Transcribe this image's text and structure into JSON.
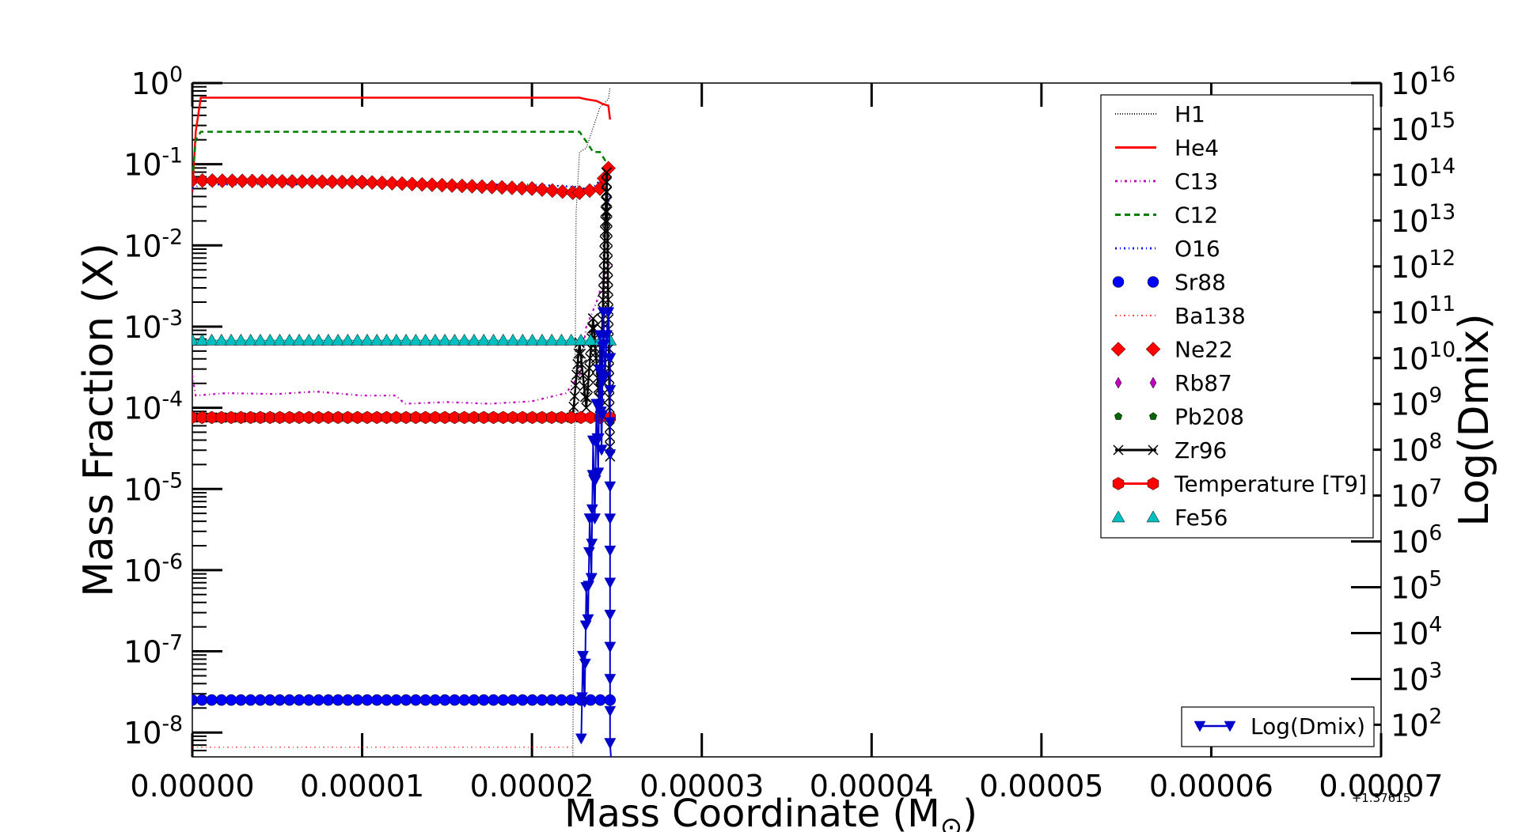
{
  "chart_data": {
    "type": "line",
    "xlabel": "Mass Coordinate (M",
    "xlabel_symbol": "⊙",
    "xlabel_close": ")",
    "ylabel": "Mass Fraction (X)",
    "y2label": "Log(Dmix)",
    "x_offset_label": "+1.37615",
    "xlim": [
      0.0,
      7e-05
    ],
    "ylim_log10": [
      -8.3,
      0.0
    ],
    "y2lim_log10": [
      1.3,
      16.0
    ],
    "xticks": [
      {
        "value": 0.0,
        "label": "0.00000"
      },
      {
        "value": 1e-05,
        "label": "0.00001"
      },
      {
        "value": 2e-05,
        "label": "0.00002"
      },
      {
        "value": 3e-05,
        "label": "0.00003"
      },
      {
        "value": 4e-05,
        "label": "0.00004"
      },
      {
        "value": 5e-05,
        "label": "0.00005"
      },
      {
        "value": 6e-05,
        "label": "0.00006"
      },
      {
        "value": 7e-05,
        "label": "0.00007"
      }
    ],
    "yticks": [
      {
        "exp": 0,
        "base": "10",
        "sup": "0"
      },
      {
        "exp": -1,
        "base": "10",
        "sup": "-1"
      },
      {
        "exp": -2,
        "base": "10",
        "sup": "-2"
      },
      {
        "exp": -3,
        "base": "10",
        "sup": "-3"
      },
      {
        "exp": -4,
        "base": "10",
        "sup": "-4"
      },
      {
        "exp": -5,
        "base": "10",
        "sup": "-5"
      },
      {
        "exp": -6,
        "base": "10",
        "sup": "-6"
      },
      {
        "exp": -7,
        "base": "10",
        "sup": "-7"
      },
      {
        "exp": -8,
        "base": "10",
        "sup": "-8"
      }
    ],
    "y2ticks": [
      {
        "exp": 16,
        "base": "10",
        "sup": "16"
      },
      {
        "exp": 15,
        "base": "10",
        "sup": "15"
      },
      {
        "exp": 14,
        "base": "10",
        "sup": "14"
      },
      {
        "exp": 13,
        "base": "10",
        "sup": "13"
      },
      {
        "exp": 12,
        "base": "10",
        "sup": "12"
      },
      {
        "exp": 11,
        "base": "10",
        "sup": "11"
      },
      {
        "exp": 10,
        "base": "10",
        "sup": "10"
      },
      {
        "exp": 9,
        "base": "10",
        "sup": "9"
      },
      {
        "exp": 8,
        "base": "10",
        "sup": "8"
      },
      {
        "exp": 7,
        "base": "10",
        "sup": "7"
      },
      {
        "exp": 6,
        "base": "10",
        "sup": "6"
      },
      {
        "exp": 5,
        "base": "10",
        "sup": "5"
      },
      {
        "exp": 4,
        "base": "10",
        "sup": "4"
      },
      {
        "exp": 3,
        "base": "10",
        "sup": "3"
      },
      {
        "exp": 2,
        "base": "10",
        "sup": "2"
      }
    ],
    "legend_position": "top-right",
    "legend2_position": "bottom-right",
    "series": [
      {
        "name": "H1",
        "color": "#000000",
        "dash": "1,2",
        "width": 1.2,
        "marker": "none",
        "points": [
          [
            0.0,
            -8.6
          ],
          [
            2.24e-05,
            -8.6
          ],
          [
            2.26e-05,
            -1.6
          ],
          [
            2.28e-05,
            -0.85
          ],
          [
            2.32e-05,
            -0.8
          ],
          [
            2.36e-05,
            -0.55
          ],
          [
            2.4e-05,
            -0.3
          ],
          [
            2.45e-05,
            -0.2
          ],
          [
            2.46e-05,
            -0.05
          ]
        ]
      },
      {
        "name": "He4",
        "color": "#ff0000",
        "dash": "",
        "width": 2.5,
        "marker": "none",
        "points": [
          [
            0.0,
            -1.35
          ],
          [
            2e-07,
            -0.6
          ],
          [
            5e-07,
            -0.18
          ],
          [
            2.28e-05,
            -0.18
          ],
          [
            2.32e-05,
            -0.2
          ],
          [
            2.38e-05,
            -0.22
          ],
          [
            2.42e-05,
            -0.26
          ],
          [
            2.45e-05,
            -0.28
          ],
          [
            2.46e-05,
            -0.45
          ]
        ]
      },
      {
        "name": "C13",
        "color": "#bf00bf",
        "dash": "3,4,1,4",
        "width": 2.2,
        "marker": "none",
        "points": [
          [
            0.0,
            -3.6
          ],
          [
            2e-07,
            -3.85
          ],
          [
            2e-06,
            -3.82
          ],
          [
            5e-06,
            -3.83
          ],
          [
            7.3e-06,
            -3.8
          ],
          [
            1e-05,
            -3.85
          ],
          [
            1.2e-05,
            -3.85
          ],
          [
            1.25e-05,
            -3.95
          ],
          [
            1.5e-05,
            -3.93
          ],
          [
            1.75e-05,
            -3.95
          ],
          [
            2e-05,
            -3.92
          ],
          [
            2.2e-05,
            -3.82
          ],
          [
            2.28e-05,
            -3.6
          ],
          [
            2.32e-05,
            -3.0
          ],
          [
            2.38e-05,
            -2.7
          ],
          [
            2.43e-05,
            -2.35
          ],
          [
            2.46e-05,
            -2.2
          ]
        ]
      },
      {
        "name": "C12",
        "color": "#008000",
        "dash": "7,5",
        "width": 2.5,
        "marker": "none",
        "points": [
          [
            0.0,
            -1.2
          ],
          [
            2e-07,
            -0.7
          ],
          [
            5e-07,
            -0.6
          ],
          [
            2.28e-05,
            -0.6
          ],
          [
            2.32e-05,
            -0.72
          ],
          [
            2.36e-05,
            -0.85
          ],
          [
            2.4e-05,
            -0.85
          ],
          [
            2.43e-05,
            -0.95
          ],
          [
            2.46e-05,
            -1.1
          ]
        ]
      },
      {
        "name": "O16",
        "color": "#0000ff",
        "dash": "2,4,1,4",
        "width": 2.2,
        "marker": "none",
        "points": [
          [
            0.0,
            -1.3
          ],
          [
            5e-07,
            -1.25
          ],
          [
            2e-05,
            -1.25
          ],
          [
            2.28e-05,
            -1.28
          ],
          [
            2.34e-05,
            -1.32
          ],
          [
            2.4e-05,
            -1.2
          ],
          [
            2.44e-05,
            -1.3
          ],
          [
            2.46e-05,
            -1.55
          ]
        ]
      },
      {
        "name": "Sr88",
        "color": "#0000ff",
        "dash": "",
        "width": 1.5,
        "marker": "circle",
        "points": [
          [
            0.0,
            -7.6
          ],
          [
            2.46e-05,
            -7.6
          ]
        ]
      },
      {
        "name": "Ba138",
        "color": "#ff0000",
        "dash": "2,4,1,4",
        "width": 1.0,
        "marker": "none",
        "points": [
          [
            0.0,
            -8.18
          ],
          [
            2.24e-05,
            -8.18
          ]
        ]
      },
      {
        "name": "Ne22",
        "color": "#ff0000",
        "dash": "",
        "width": 1.5,
        "marker": "diamond",
        "points": [
          [
            0.0,
            -1.2
          ],
          [
            1e-05,
            -1.22
          ],
          [
            2e-05,
            -1.3
          ],
          [
            2.24e-05,
            -1.35
          ],
          [
            2.28e-05,
            -1.35
          ],
          [
            2.4e-05,
            -1.3
          ],
          [
            2.45e-05,
            -1.05
          ]
        ]
      },
      {
        "name": "Rb87",
        "color": "#bf00bf",
        "dash": "",
        "width": 1.0,
        "marker": "diamond-small",
        "points": []
      },
      {
        "name": "Pb208",
        "color": "#006400",
        "dash": "",
        "width": 1.0,
        "marker": "pentagon",
        "points": []
      },
      {
        "name": "Zr96",
        "color": "#000000",
        "dash": "",
        "width": 2.5,
        "marker": "x",
        "points": [
          [
            0.0,
            -4.12
          ],
          [
            2.24e-05,
            -4.12
          ],
          [
            2.28e-05,
            -3.2
          ],
          [
            2.32e-05,
            -4.0
          ],
          [
            2.36e-05,
            -2.9
          ],
          [
            2.4e-05,
            -4.0
          ],
          [
            2.44e-05,
            -1.1
          ],
          [
            2.46e-05,
            -4.6
          ]
        ]
      },
      {
        "name": "Temperature [T9]",
        "color": "#ff0000",
        "dash": "",
        "width": 1.5,
        "marker": "hexagon",
        "points": [
          [
            0.0,
            -4.12
          ],
          [
            2.46e-05,
            -4.12
          ]
        ]
      },
      {
        "name": "Fe56",
        "color": "#00bfbf",
        "dash": "",
        "width": 1.5,
        "marker": "triangle",
        "points": [
          [
            0.0,
            -3.17
          ],
          [
            2.46e-05,
            -3.17
          ]
        ]
      }
    ],
    "series2": [
      {
        "name": "Log(Dmix)",
        "color": "#0000cc",
        "dash": "",
        "width": 2.0,
        "marker": "triangle-down",
        "points": [
          [
            2.29e-05,
            1.7
          ],
          [
            2.3e-05,
            3.5
          ],
          [
            2.31e-05,
            2.5
          ],
          [
            2.32e-05,
            5.0
          ],
          [
            2.33e-05,
            4.3
          ],
          [
            2.34e-05,
            6.5
          ],
          [
            2.35e-05,
            5.2
          ],
          [
            2.36e-05,
            8.2
          ],
          [
            2.37e-05,
            6.5
          ],
          [
            2.38e-05,
            9.0
          ],
          [
            2.39e-05,
            7.5
          ],
          [
            2.4e-05,
            10.5
          ],
          [
            2.41e-05,
            8.0
          ],
          [
            2.42e-05,
            11.0
          ],
          [
            2.43e-05,
            9.6
          ],
          [
            2.44e-05,
            10.5
          ],
          [
            2.45e-05,
            11.0
          ],
          [
            2.46e-05,
            10.0
          ],
          [
            2.46e-05,
            1.6
          ],
          [
            2.47e-05,
            1.0
          ]
        ]
      }
    ]
  }
}
